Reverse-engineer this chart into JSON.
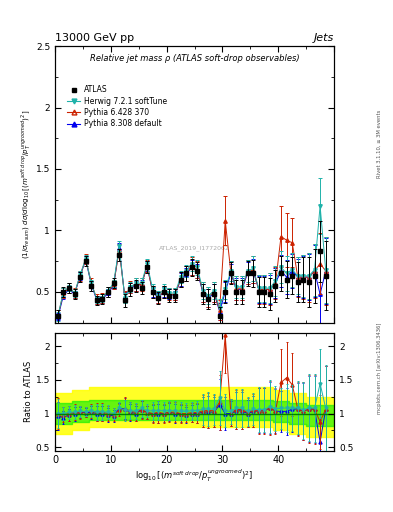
{
  "title_top": "13000 GeV pp",
  "title_right": "Jets",
  "plot_title": "Relative jet mass ρ (ATLAS soft-drop observables)",
  "watermark": "ATLAS_2019_I1772062",
  "rivet_text": "Rivet 3.1.10, ≥ 3M events",
  "arxiv_text": "mcplots.cern.ch [arXiv:1306.3436]",
  "ylabel_ratio": "Ratio to ATLAS",
  "xlim": [
    0,
    50
  ],
  "ylim_main": [
    0.25,
    2.5
  ],
  "ylim_ratio": [
    0.45,
    2.2
  ],
  "yticks_main": [
    0.5,
    1.0,
    1.5,
    2.0,
    2.5
  ],
  "yticks_ratio": [
    0.5,
    1.0,
    1.5,
    2.0
  ],
  "xticks": [
    0,
    10,
    20,
    30,
    40,
    50
  ],
  "xticklabels": [
    "0",
    "10",
    "20",
    "30",
    "40",
    ""
  ],
  "colors": {
    "ATLAS": "#000000",
    "Herwig": "#20b2aa",
    "Pythia6": "#cc2200",
    "Pythia8": "#0000ee"
  },
  "band_yellow": "#ffff00",
  "band_green": "#00ee00",
  "x_data": [
    0.5,
    1.5,
    2.5,
    3.5,
    4.5,
    5.5,
    6.5,
    7.5,
    8.5,
    9.5,
    10.5,
    11.5,
    12.5,
    13.5,
    14.5,
    15.5,
    16.5,
    17.5,
    18.5,
    19.5,
    20.5,
    21.5,
    22.5,
    23.5,
    24.5,
    25.5,
    26.5,
    27.5,
    28.5,
    29.5,
    30.5,
    31.5,
    32.5,
    33.5,
    34.5,
    35.5,
    36.5,
    37.5,
    38.5,
    39.5,
    40.5,
    41.5,
    42.5,
    43.5,
    44.5,
    45.5,
    46.5,
    47.5,
    48.5
  ],
  "atlas_y": [
    0.3,
    0.5,
    0.53,
    0.48,
    0.62,
    0.75,
    0.55,
    0.43,
    0.44,
    0.5,
    0.57,
    0.8,
    0.43,
    0.52,
    0.55,
    0.53,
    0.7,
    0.5,
    0.45,
    0.5,
    0.47,
    0.47,
    0.6,
    0.65,
    0.7,
    0.67,
    0.48,
    0.44,
    0.48,
    0.3,
    0.5,
    0.65,
    0.5,
    0.5,
    0.65,
    0.65,
    0.5,
    0.5,
    0.48,
    0.55,
    0.65,
    0.6,
    0.63,
    0.58,
    0.6,
    0.58,
    0.63,
    0.83,
    0.63
  ],
  "atlas_yerr": [
    0.05,
    0.04,
    0.04,
    0.04,
    0.04,
    0.04,
    0.04,
    0.04,
    0.04,
    0.04,
    0.04,
    0.05,
    0.05,
    0.05,
    0.05,
    0.05,
    0.05,
    0.05,
    0.05,
    0.05,
    0.05,
    0.05,
    0.06,
    0.06,
    0.07,
    0.07,
    0.08,
    0.08,
    0.08,
    0.08,
    0.09,
    0.09,
    0.1,
    0.1,
    0.1,
    0.11,
    0.12,
    0.12,
    0.13,
    0.13,
    0.14,
    0.15,
    0.15,
    0.16,
    0.18,
    0.2,
    0.22,
    0.25,
    0.28
  ],
  "herwig_y": [
    0.3,
    0.5,
    0.54,
    0.49,
    0.64,
    0.77,
    0.57,
    0.44,
    0.45,
    0.51,
    0.57,
    0.87,
    0.45,
    0.54,
    0.57,
    0.57,
    0.73,
    0.52,
    0.47,
    0.52,
    0.49,
    0.49,
    0.62,
    0.67,
    0.73,
    0.7,
    0.51,
    0.47,
    0.51,
    0.37,
    0.52,
    0.67,
    0.54,
    0.54,
    0.67,
    0.69,
    0.53,
    0.53,
    0.53,
    0.59,
    0.7,
    0.65,
    0.68,
    0.63,
    0.63,
    0.63,
    0.68,
    1.2,
    0.68
  ],
  "herwig_yerr": [
    0.04,
    0.03,
    0.03,
    0.03,
    0.03,
    0.03,
    0.03,
    0.03,
    0.03,
    0.03,
    0.03,
    0.04,
    0.04,
    0.04,
    0.04,
    0.04,
    0.04,
    0.04,
    0.04,
    0.04,
    0.04,
    0.04,
    0.05,
    0.05,
    0.06,
    0.06,
    0.07,
    0.07,
    0.07,
    0.07,
    0.08,
    0.08,
    0.09,
    0.09,
    0.09,
    0.1,
    0.11,
    0.11,
    0.12,
    0.12,
    0.13,
    0.14,
    0.14,
    0.15,
    0.17,
    0.19,
    0.21,
    0.23,
    0.27
  ],
  "pythia6_y": [
    0.3,
    0.49,
    0.53,
    0.49,
    0.63,
    0.77,
    0.57,
    0.44,
    0.45,
    0.5,
    0.56,
    0.84,
    0.46,
    0.54,
    0.56,
    0.56,
    0.71,
    0.5,
    0.46,
    0.5,
    0.48,
    0.48,
    0.6,
    0.65,
    0.71,
    0.68,
    0.5,
    0.46,
    0.5,
    0.35,
    1.08,
    0.66,
    0.53,
    0.53,
    0.66,
    0.68,
    0.52,
    0.52,
    0.52,
    0.57,
    0.95,
    0.92,
    0.9,
    0.62,
    0.62,
    0.62,
    0.67,
    0.73,
    0.67
  ],
  "pythia6_yerr": [
    0.05,
    0.04,
    0.04,
    0.04,
    0.04,
    0.04,
    0.04,
    0.04,
    0.04,
    0.04,
    0.04,
    0.05,
    0.05,
    0.05,
    0.05,
    0.05,
    0.05,
    0.05,
    0.05,
    0.05,
    0.05,
    0.05,
    0.06,
    0.06,
    0.07,
    0.07,
    0.08,
    0.08,
    0.08,
    0.08,
    0.2,
    0.09,
    0.1,
    0.1,
    0.1,
    0.11,
    0.12,
    0.12,
    0.13,
    0.13,
    0.25,
    0.22,
    0.2,
    0.16,
    0.18,
    0.2,
    0.22,
    0.25,
    0.28
  ],
  "pythia8_y": [
    0.29,
    0.47,
    0.52,
    0.48,
    0.63,
    0.76,
    0.56,
    0.43,
    0.44,
    0.49,
    0.55,
    0.86,
    0.46,
    0.53,
    0.55,
    0.56,
    0.71,
    0.5,
    0.45,
    0.5,
    0.48,
    0.47,
    0.6,
    0.64,
    0.7,
    0.67,
    0.49,
    0.45,
    0.49,
    0.34,
    0.5,
    0.65,
    0.52,
    0.52,
    0.65,
    0.67,
    0.52,
    0.52,
    0.52,
    0.57,
    0.67,
    0.62,
    0.67,
    0.62,
    0.62,
    0.62,
    0.67,
    0.48,
    0.67
  ],
  "pythia8_yerr": [
    0.04,
    0.03,
    0.03,
    0.03,
    0.03,
    0.03,
    0.03,
    0.03,
    0.03,
    0.03,
    0.03,
    0.04,
    0.04,
    0.04,
    0.04,
    0.04,
    0.04,
    0.04,
    0.04,
    0.04,
    0.04,
    0.04,
    0.05,
    0.05,
    0.06,
    0.06,
    0.07,
    0.07,
    0.07,
    0.07,
    0.08,
    0.08,
    0.09,
    0.09,
    0.09,
    0.1,
    0.11,
    0.11,
    0.12,
    0.12,
    0.13,
    0.14,
    0.14,
    0.15,
    0.17,
    0.19,
    0.21,
    0.23,
    0.27
  ],
  "band_xedges": [
    0,
    3,
    6,
    9,
    12,
    15,
    18,
    21,
    24,
    27,
    30,
    33,
    36,
    39,
    42,
    45,
    48,
    50
  ],
  "band_yellow_lo": [
    0.7,
    0.75,
    0.8,
    0.8,
    0.8,
    0.8,
    0.8,
    0.8,
    0.8,
    0.8,
    0.8,
    0.8,
    0.8,
    0.75,
    0.7,
    0.65,
    0.65
  ],
  "band_yellow_hi": [
    1.3,
    1.35,
    1.4,
    1.4,
    1.4,
    1.4,
    1.4,
    1.4,
    1.4,
    1.4,
    1.4,
    1.4,
    1.4,
    1.35,
    1.3,
    1.25,
    1.25
  ],
  "band_green_lo": [
    0.85,
    0.88,
    0.9,
    0.9,
    0.9,
    0.9,
    0.9,
    0.9,
    0.9,
    0.9,
    0.9,
    0.9,
    0.9,
    0.88,
    0.85,
    0.82,
    0.82
  ],
  "band_green_hi": [
    1.15,
    1.18,
    1.2,
    1.2,
    1.2,
    1.2,
    1.2,
    1.2,
    1.2,
    1.2,
    1.2,
    1.2,
    1.2,
    1.18,
    1.15,
    1.12,
    1.12
  ]
}
